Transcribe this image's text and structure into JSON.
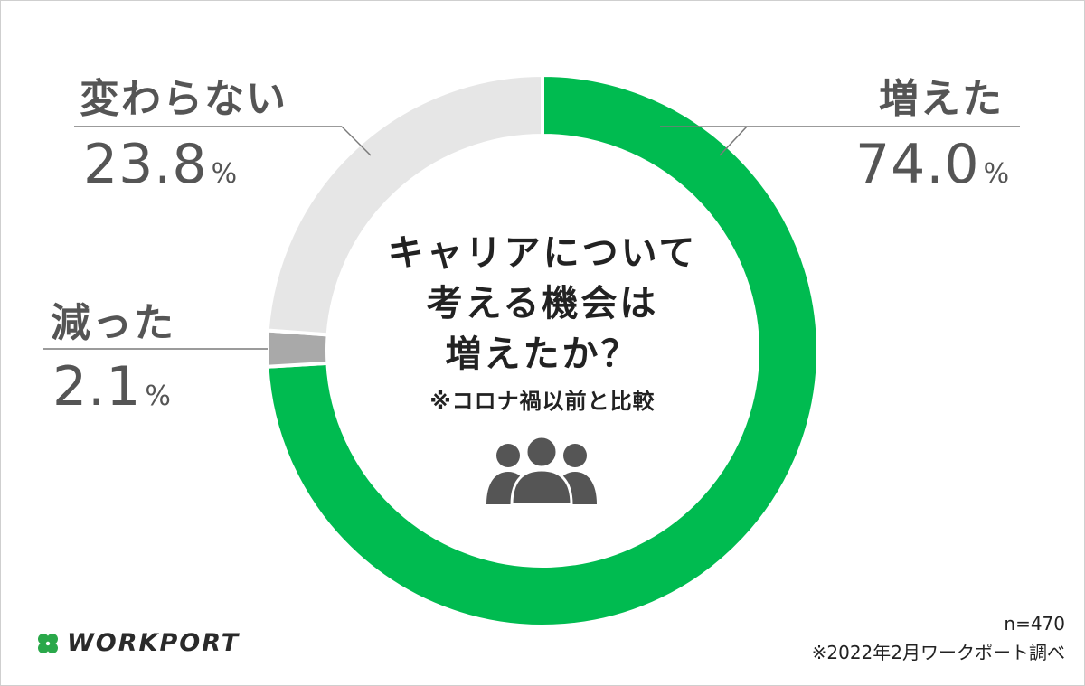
{
  "chart_data": {
    "type": "pie",
    "variant": "donut",
    "title": "キャリアについて考える機会は増えたか？",
    "subtitle": "※コロナ禍以前と比較",
    "unit": "%",
    "slices": [
      {
        "label": "増えた",
        "value": 74.0,
        "display": "74.0",
        "color": "#00bb50"
      },
      {
        "label": "減った",
        "value": 2.1,
        "display": "2.1",
        "color": "#a9a9a9"
      },
      {
        "label": "変わらない",
        "value": 23.8,
        "display": "23.8",
        "color": "#e6e6e6"
      }
    ],
    "start_angle_deg": 0,
    "direction": "clockwise"
  },
  "center": {
    "title_lines": [
      "キャリアについて",
      "考える機会は",
      "増えたか？"
    ],
    "note": "※コロナ禍以前と比較",
    "icon": "people-group-icon"
  },
  "footer": {
    "sample": "n=470",
    "source": "※2022年2月ワークポート調べ",
    "logo_text": "WORKPORT",
    "logo_icon": "clover-icon",
    "logo_color": "#2aa84a"
  },
  "colors": {
    "text_gray": "#555555",
    "line_gray": "#7a7a7a"
  }
}
